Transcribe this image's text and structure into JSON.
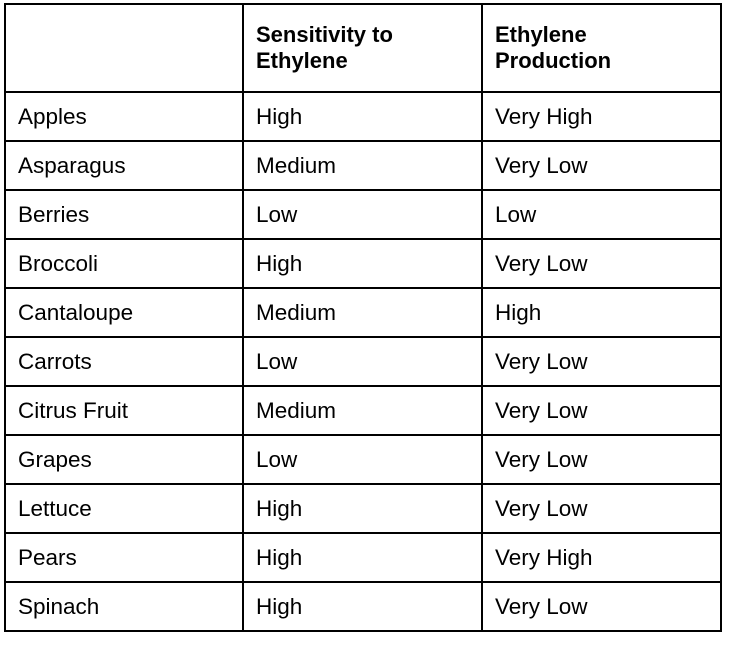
{
  "table": {
    "headers": [
      "",
      "Sensitivity to Ethylene",
      "Ethylene Production"
    ],
    "rows": [
      {
        "produce": "Apples",
        "sensitivity": "High",
        "production": "Very High"
      },
      {
        "produce": "Asparagus",
        "sensitivity": "Medium",
        "production": "Very Low"
      },
      {
        "produce": "Berries",
        "sensitivity": "Low",
        "production": "Low"
      },
      {
        "produce": "Broccoli",
        "sensitivity": "High",
        "production": "Very Low"
      },
      {
        "produce": "Cantaloupe",
        "sensitivity": "Medium",
        "production": "High"
      },
      {
        "produce": "Carrots",
        "sensitivity": "Low",
        "production": "Very Low"
      },
      {
        "produce": "Citrus Fruit",
        "sensitivity": "Medium",
        "production": "Very Low"
      },
      {
        "produce": "Grapes",
        "sensitivity": "Low",
        "production": "Very Low"
      },
      {
        "produce": "Lettuce",
        "sensitivity": "High",
        "production": "Very Low"
      },
      {
        "produce": "Pears",
        "sensitivity": "High",
        "production": "Very High"
      },
      {
        "produce": "Spinach",
        "sensitivity": "High",
        "production": "Very Low"
      }
    ]
  }
}
